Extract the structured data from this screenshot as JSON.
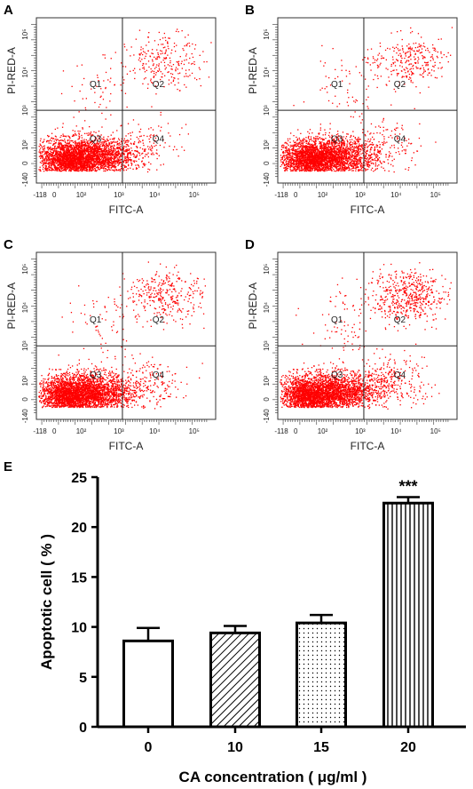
{
  "panels": [
    "A",
    "B",
    "C",
    "D"
  ],
  "flow": {
    "xlabel": "FITC-A",
    "ylabel": "PI-RED-A",
    "x_ticks": [
      "-118",
      "0",
      "10²",
      "10³",
      "10⁴",
      "10⁵"
    ],
    "y_ticks": [
      "-140",
      "0",
      "10²",
      "10³",
      "10⁴",
      "10⁵"
    ],
    "quadrants": [
      "Q1",
      "Q2",
      "Q3",
      "Q4"
    ],
    "dot_color": "#ff0000"
  },
  "chart_data": {
    "type": "bar",
    "panel": "E",
    "categories": [
      "0",
      "10",
      "15",
      "20"
    ],
    "values": [
      8.6,
      9.4,
      10.4,
      22.4
    ],
    "errors": [
      1.3,
      0.7,
      0.8,
      0.6
    ],
    "patterns": [
      "none",
      "diagonal",
      "dots",
      "vertical"
    ],
    "annotations": [
      "",
      "",
      "",
      "***"
    ],
    "xlabel": "CA concentration ( μg/ml )",
    "ylabel": "Apoptotic cell ( % )",
    "ylim": [
      0,
      25
    ],
    "yticks": [
      0,
      5,
      10,
      15,
      20,
      25
    ]
  }
}
